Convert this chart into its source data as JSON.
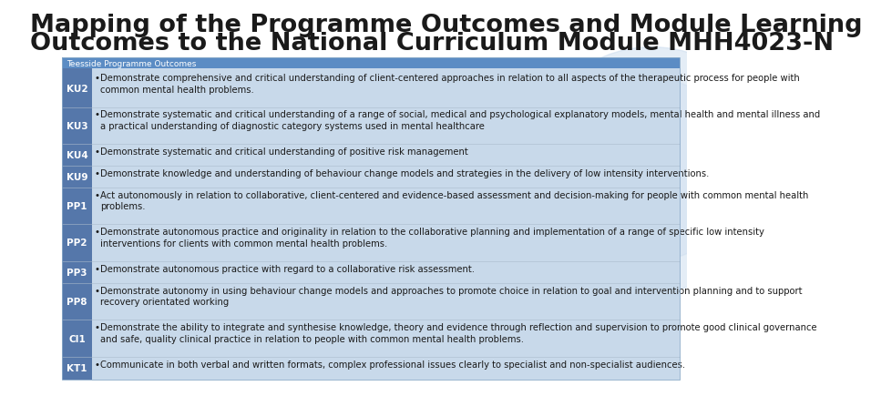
{
  "title_line1": "Mapping of the Programme Outcomes and Module Learning",
  "title_line2": "Outcomes to the National Curriculum Module MHH4023-N",
  "title_color": "#1a1a1a",
  "title_fontsize": 19.5,
  "header_text": "Teesside Programme Outcomes",
  "header_bg": "#5b8cc4",
  "header_text_color": "#ffffff",
  "table_bg": "#c8d9ea",
  "left_col_bg": "#5577aa",
  "left_col_text_color": "#ffffff",
  "body_text_color": "#1a1a1a",
  "separator_color": "#aabbcc",
  "bg_color": "#ffffff",
  "circle_color": "#c5d8ed",
  "rows": [
    {
      "code": "KU2",
      "text": "Demonstrate comprehensive and critical understanding of client-centered approaches in relation to all aspects of the therapeutic process for people with\ncommon mental health problems.",
      "lines": 2
    },
    {
      "code": "KU3",
      "text": "Demonstrate systematic and critical understanding of a range of social, medical and psychological explanatory models, mental health and mental illness and\na practical understanding of diagnostic category systems used in mental healthcare",
      "lines": 2
    },
    {
      "code": "KU4",
      "text": "Demonstrate systematic and critical understanding of positive risk management",
      "lines": 1
    },
    {
      "code": "KU9",
      "text": "Demonstrate knowledge and understanding of behaviour change models and strategies in the delivery of low intensity interventions.",
      "lines": 1
    },
    {
      "code": "PP1",
      "text": "Act autonomously in relation to collaborative, client-centered and evidence-based assessment and decision-making for people with common mental health\nproblems.",
      "lines": 2
    },
    {
      "code": "PP2",
      "text": "Demonstrate autonomous practice and originality in relation to the collaborative planning and implementation of a range of specific low intensity\ninterventions for clients with common mental health problems.",
      "lines": 2
    },
    {
      "code": "PP3",
      "text": "Demonstrate autonomous practice with regard to a collaborative risk assessment.",
      "lines": 1
    },
    {
      "code": "PP8",
      "text": "Demonstrate autonomy in using behaviour change models and approaches to promote choice in relation to goal and intervention planning and to support\nrecovery orientated working",
      "lines": 2
    },
    {
      "code": "CI1",
      "text": "Demonstrate the ability to integrate and synthesise knowledge, theory and evidence through reflection and supervision to promote good clinical governance\nand safe, quality clinical practice in relation to people with common mental health problems.",
      "lines": 2
    },
    {
      "code": "KT1",
      "text": "Communicate in both verbal and written formats, complex professional issues clearly to specialist and non-specialist audiences.",
      "lines": 1
    }
  ]
}
